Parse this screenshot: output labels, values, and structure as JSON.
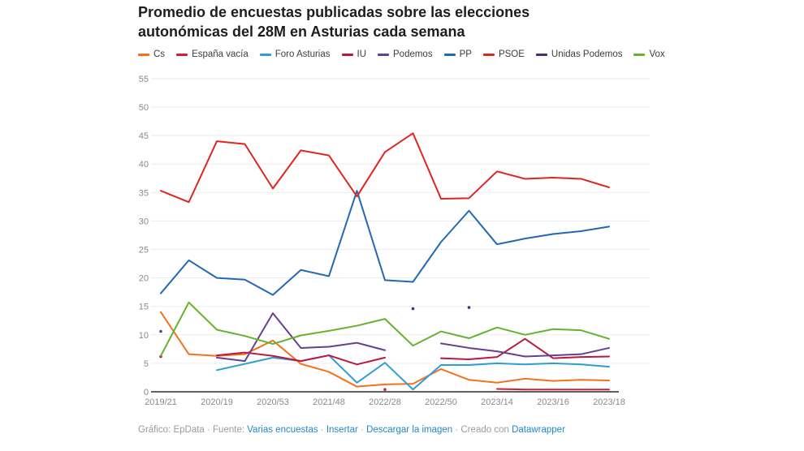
{
  "title": "Promedio de encuestas publicadas sobre las elecciones autonómicas del 28M en Asturias cada semana",
  "footer": {
    "parts": [
      {
        "text": "Gráfico: EpData · Fuente: ",
        "link": false
      },
      {
        "text": "Varias encuestas",
        "link": true
      },
      {
        "text": " · ",
        "link": false
      },
      {
        "text": "Insertar",
        "link": true
      },
      {
        "text": " · ",
        "link": false
      },
      {
        "text": "Descargar la imagen",
        "link": true
      },
      {
        "text": " · Creado con ",
        "link": false
      },
      {
        "text": "Datawrapper",
        "link": true
      }
    ]
  },
  "chart_data": {
    "type": "line",
    "title": "Promedio de encuestas publicadas sobre las elecciones autonómicas del 28M en Asturias cada semana",
    "x_tick_labels": [
      "2019/21",
      "2020/19",
      "2020/53",
      "2021/48",
      "2022/28",
      "2022/50",
      "2023/14",
      "2023/16",
      "2023/18"
    ],
    "x_tick_indices": [
      0,
      2,
      4,
      6,
      8,
      10,
      12,
      14,
      16
    ],
    "n_points": 17,
    "y_ticks": [
      0,
      5,
      10,
      15,
      20,
      25,
      30,
      35,
      40,
      45,
      50,
      55
    ],
    "ylim": [
      0,
      55
    ],
    "grid": true,
    "legend_position": "top",
    "series": [
      {
        "name": "Cs",
        "color": "#f4711f",
        "values": [
          14.0,
          6.6,
          6.3,
          6.6,
          9.0,
          4.9,
          3.5,
          0.9,
          1.3,
          1.4,
          4.0,
          2.1,
          1.6,
          2.3,
          1.9,
          2.1,
          2.0
        ]
      },
      {
        "name": "España vacía",
        "color": "#d02030",
        "values": [
          null,
          null,
          null,
          null,
          null,
          null,
          null,
          null,
          0.4,
          null,
          null,
          null,
          0.5,
          0.4,
          0.4,
          0.4,
          0.4
        ]
      },
      {
        "name": "Foro Asturias",
        "color": "#2e9fd4",
        "values": [
          null,
          null,
          3.8,
          4.9,
          6.0,
          5.4,
          6.4,
          1.6,
          5.1,
          0.4,
          4.7,
          4.7,
          5.0,
          4.8,
          5.0,
          4.8,
          4.4
        ]
      },
      {
        "name": "IU",
        "color": "#bb1840",
        "values": [
          6.2,
          null,
          6.4,
          6.9,
          6.3,
          5.4,
          6.4,
          4.8,
          6.0,
          null,
          5.9,
          5.7,
          6.1,
          9.3,
          5.9,
          6.1,
          6.2
        ]
      },
      {
        "name": "Podemos",
        "color": "#66408f",
        "values": [
          10.6,
          null,
          6.0,
          5.4,
          13.8,
          7.7,
          7.9,
          8.6,
          7.3,
          null,
          8.5,
          7.7,
          7.1,
          6.2,
          6.4,
          6.6,
          7.7
        ]
      },
      {
        "name": "PP",
        "color": "#2268b4",
        "values": [
          17.3,
          23.1,
          20.0,
          19.7,
          17.0,
          21.4,
          20.3,
          35.3,
          19.6,
          19.3,
          26.3,
          31.8,
          25.9,
          26.9,
          27.7,
          28.2,
          29.0
        ]
      },
      {
        "name": "PSOE",
        "color": "#e02420",
        "values": [
          35.3,
          33.3,
          44.0,
          43.5,
          35.7,
          42.4,
          41.5,
          34.3,
          42.1,
          45.4,
          33.9,
          34.0,
          38.7,
          37.4,
          37.6,
          37.4,
          35.9
        ]
      },
      {
        "name": "Unidas Podemos",
        "color": "#4a2c7a",
        "values": [
          null,
          null,
          null,
          null,
          null,
          null,
          null,
          null,
          null,
          14.6,
          null,
          14.8,
          null,
          null,
          null,
          null,
          null
        ]
      },
      {
        "name": "Vox",
        "color": "#63b32e",
        "values": [
          6.3,
          15.7,
          10.9,
          9.8,
          8.4,
          9.9,
          10.7,
          11.6,
          12.8,
          8.1,
          10.6,
          9.4,
          11.3,
          10.0,
          11.0,
          10.8,
          9.3
        ]
      }
    ]
  }
}
